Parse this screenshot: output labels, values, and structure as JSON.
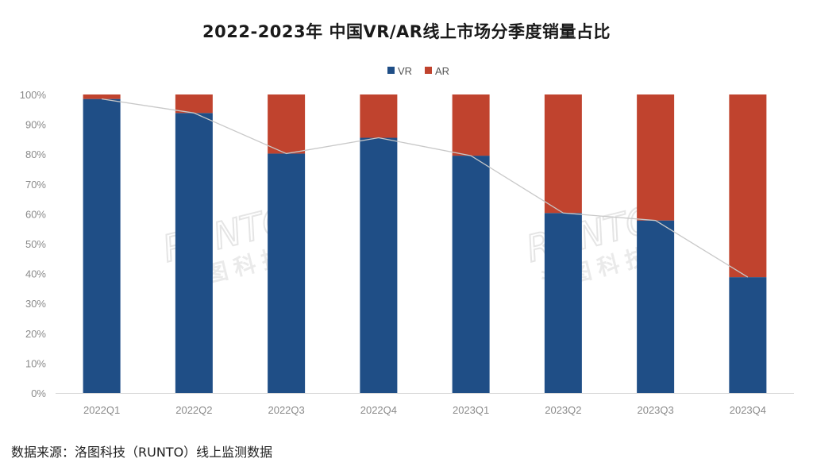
{
  "chart_data": {
    "type": "bar",
    "stacked": true,
    "title": "2022-2023年 中国VR/AR线上市场分季度销量占比",
    "categories": [
      "2022Q1",
      "2022Q2",
      "2022Q3",
      "2022Q4",
      "2023Q1",
      "2023Q2",
      "2023Q3",
      "2023Q4"
    ],
    "series": [
      {
        "name": "VR",
        "color": "#1f4e86",
        "values": [
          98.5,
          93.8,
          80.2,
          85.5,
          79.5,
          60.3,
          57.8,
          38.8
        ]
      },
      {
        "name": "AR",
        "color": "#c0432e",
        "values": [
          1.5,
          6.2,
          19.8,
          14.5,
          20.5,
          39.7,
          42.2,
          61.2
        ]
      }
    ],
    "trend_line": {
      "series": "VR",
      "color": "#c8c8c8"
    },
    "yticks": [
      "0%",
      "10%",
      "20%",
      "30%",
      "40%",
      "50%",
      "60%",
      "70%",
      "80%",
      "90%",
      "100%"
    ],
    "ylim": [
      0,
      100
    ],
    "xlabel": "",
    "ylabel": "",
    "legend_position": "top-center",
    "grid": false
  },
  "watermark": "RUNTO 洛图科技",
  "source_note": "数据来源：洛图科技（RUNTO）线上监测数据"
}
